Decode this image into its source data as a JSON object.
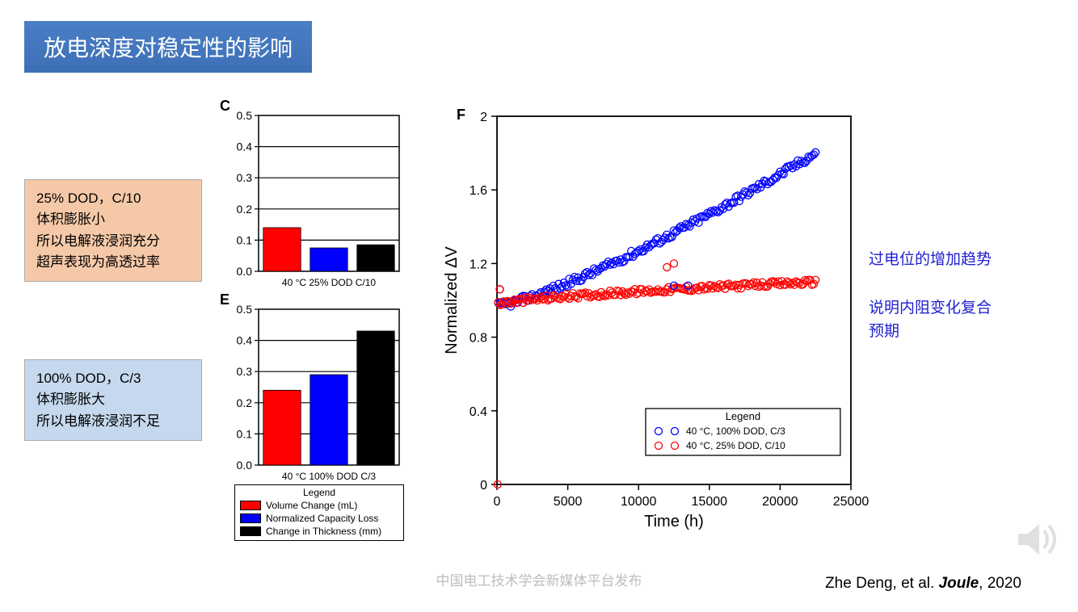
{
  "slide": {
    "title": "放电深度对稳定性的影响",
    "watermark": "中国电工技术学会新媒体平台发布",
    "citation_author": "Zhe Deng, et al. ",
    "citation_journal": "Joule",
    "citation_year": ", 2020"
  },
  "textbox_orange": {
    "lines": [
      "25% DOD，C/10",
      "体积膨胀小",
      "所以电解液浸润充分",
      "超声表现为高透过率"
    ],
    "bg": "#f5c9a8"
  },
  "textbox_blue": {
    "lines": [
      "100% DOD，C/3",
      "体积膨胀大",
      "所以电解液浸润不足"
    ],
    "bg": "#c5d8ed"
  },
  "annotations": {
    "line1": "过电位的增加趋势",
    "line2": "说明内阻变化复合",
    "line3": "预期",
    "color": "#2020d0"
  },
  "bar_chart_C": {
    "letter": "C",
    "type": "bar",
    "ylim": [
      0,
      0.5
    ],
    "ytick_step": 0.1,
    "xlabel": "40 °C 25% DOD C/10",
    "categories": [
      "Volume Change (mL)",
      "Normalized Capacity Loss",
      "Change in Thickness (mm)"
    ],
    "values": [
      0.14,
      0.075,
      0.085
    ],
    "colors": [
      "#ff0000",
      "#0000ff",
      "#000000"
    ],
    "bar_width": 0.8,
    "axis_color": "#000000",
    "label_fontsize": 12
  },
  "bar_chart_E": {
    "letter": "E",
    "type": "bar",
    "ylim": [
      0,
      0.5
    ],
    "ytick_step": 0.1,
    "xlabel": "40 °C 100% DOD C/3",
    "categories": [
      "Volume Change (mL)",
      "Normalized Capacity Loss",
      "Change in Thickness (mm)"
    ],
    "values": [
      0.24,
      0.29,
      0.43
    ],
    "colors": [
      "#ff0000",
      "#0000ff",
      "#000000"
    ],
    "bar_width": 0.8,
    "axis_color": "#000000",
    "label_fontsize": 12
  },
  "bar_legend": {
    "title": "Legend",
    "items": [
      {
        "color": "#ff0000",
        "label": "Volume Change (mL)"
      },
      {
        "color": "#0000ff",
        "label": "Normalized Capacity Loss"
      },
      {
        "color": "#000000",
        "label": "Change in Thickness (mm)"
      }
    ]
  },
  "scatter_F": {
    "letter": "F",
    "type": "scatter",
    "xlabel": "Time (h)",
    "ylabel": "Normalized ΔV",
    "xlim": [
      0,
      25000
    ],
    "ylim": [
      0,
      2
    ],
    "xticks": [
      0,
      5000,
      10000,
      15000,
      20000,
      25000
    ],
    "yticks": [
      0,
      0.4,
      0.8,
      1.2,
      1.6,
      2
    ],
    "label_fontsize": 20,
    "tick_fontsize": 16,
    "axis_color": "#000000",
    "marker_size": 4.5,
    "marker_style": "open-circle",
    "series": [
      {
        "name": "40 °C, 100% DOD, C/3",
        "color": "#0000ff",
        "n_points": 180,
        "x_range": [
          100,
          22500
        ],
        "y_at_xmin": 0.97,
        "y_at_xmax": 1.8,
        "curve": "sublinear-then-linear",
        "scatter_noise": 0.02
      },
      {
        "name": "40 °C, 25% DOD, C/10",
        "color": "#ff0000",
        "n_points": 180,
        "x_range": [
          100,
          22500
        ],
        "y_at_xmin": 0.98,
        "y_at_xmax": 1.1,
        "curve": "flat-slow-rise",
        "scatter_noise": 0.015
      }
    ],
    "outliers": [
      {
        "series": 1,
        "x": 50,
        "y": 0.0
      },
      {
        "series": 0,
        "x": 200,
        "y": 1.06
      },
      {
        "series": 1,
        "x": 200,
        "y": 1.06
      },
      {
        "series": 0,
        "x": 12500,
        "y": 1.08
      },
      {
        "series": 0,
        "x": 13500,
        "y": 1.08
      },
      {
        "series": 1,
        "x": 12000,
        "y": 1.18
      },
      {
        "series": 1,
        "x": 12500,
        "y": 1.2
      }
    ],
    "legend": {
      "title": "Legend",
      "position": "lower-right-inside",
      "box": true
    }
  }
}
